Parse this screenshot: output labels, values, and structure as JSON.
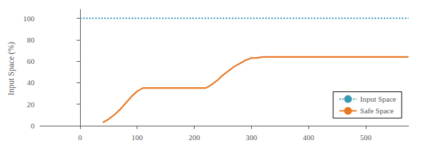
{
  "chart_data": {
    "type": "line",
    "ylabel": "Input Space (%)",
    "series": [
      {
        "name": "Input Space",
        "color": "#3a9ab2",
        "line_style": "dotted",
        "x": [
          0,
          575
        ],
        "values": [
          100,
          100
        ]
      },
      {
        "name": "Safe Space",
        "color": "#e87722",
        "line_style": "solid",
        "x": [
          40,
          50,
          60,
          70,
          80,
          90,
          100,
          110,
          120,
          130,
          140,
          150,
          160,
          170,
          180,
          190,
          200,
          210,
          220,
          230,
          240,
          250,
          260,
          270,
          280,
          290,
          300,
          310,
          320,
          330,
          340,
          350,
          400,
          500,
          575
        ],
        "values": [
          3,
          6,
          10,
          15,
          21,
          27,
          32,
          35,
          35,
          35,
          35,
          35,
          35,
          35,
          35,
          35,
          35,
          35,
          35,
          38,
          42,
          47,
          51,
          55,
          58,
          61,
          63,
          63,
          64,
          64,
          64,
          64,
          64,
          64,
          64
        ]
      }
    ],
    "xlim": [
      -70,
      575
    ],
    "xticks": [
      0,
      100,
      200,
      300,
      400,
      500
    ],
    "ylim": [
      -2,
      108
    ],
    "yticks": [
      0,
      20,
      40,
      60,
      80,
      100
    ],
    "grid": false,
    "legend": "lower right"
  }
}
